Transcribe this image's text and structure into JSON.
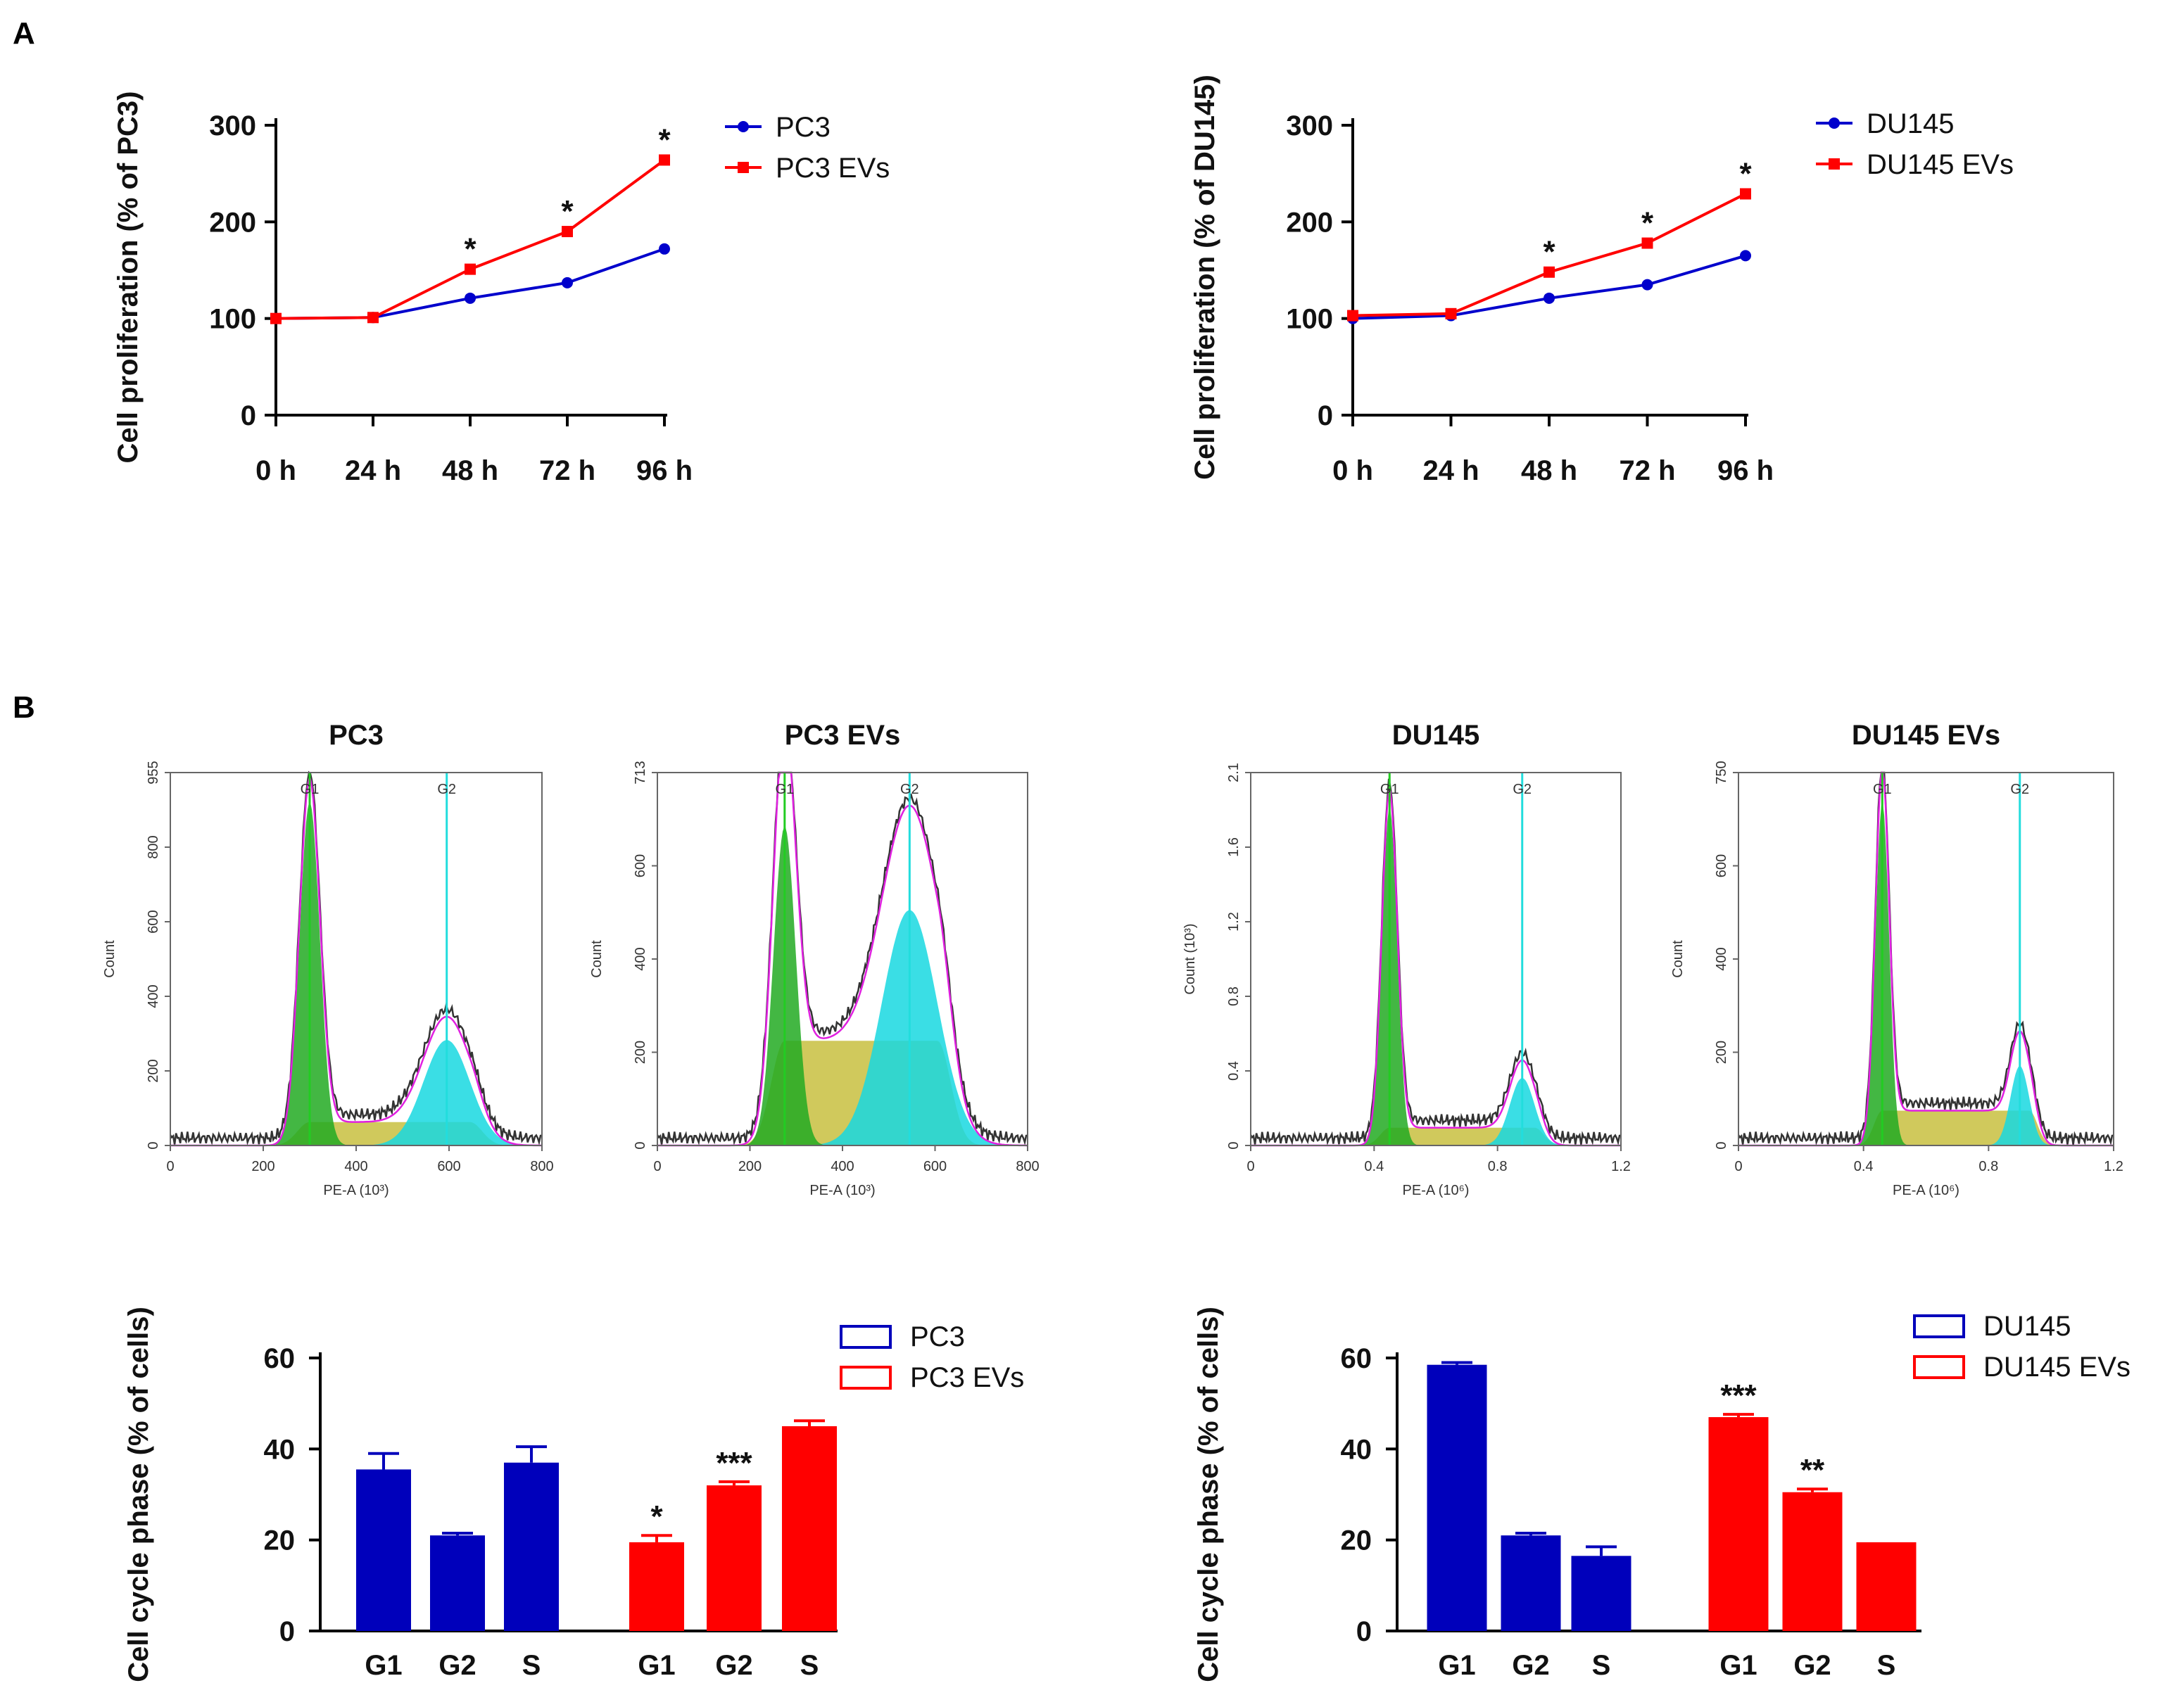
{
  "panels": {
    "a_label": "A",
    "b_label": "B"
  },
  "chart_data": [
    {
      "id": "prolif-pc3",
      "type": "line",
      "title": "",
      "ylabel": "Cell proliferation (% of PC3)",
      "categories": [
        "0 h",
        "24 h",
        "48 h",
        "72 h",
        "96 h"
      ],
      "yticks": [
        0,
        100,
        200,
        300
      ],
      "ylim": [
        0,
        300
      ],
      "legend": "top-right",
      "series": [
        {
          "name": "PC3",
          "color": "#0000cc",
          "marker": "circle",
          "values": [
            100,
            101,
            121,
            137,
            172
          ]
        },
        {
          "name": "PC3 EVs",
          "color": "#ff0000",
          "marker": "square",
          "values": [
            100,
            101,
            151,
            190,
            264
          ]
        }
      ],
      "significance": [
        "",
        "",
        "*",
        "*",
        "*"
      ]
    },
    {
      "id": "prolif-du145",
      "type": "line",
      "title": "",
      "ylabel": "Cell proliferation (% of DU145)",
      "categories": [
        "0 h",
        "24 h",
        "48 h",
        "72 h",
        "96 h"
      ],
      "yticks": [
        0,
        100,
        200,
        300
      ],
      "ylim": [
        0,
        300
      ],
      "legend": "top-right",
      "series": [
        {
          "name": "DU145",
          "color": "#0000cc",
          "marker": "circle",
          "values": [
            100,
            103,
            121,
            135,
            165
          ]
        },
        {
          "name": "DU145 EVs",
          "color": "#ff0000",
          "marker": "square",
          "values": [
            103,
            105,
            148,
            178,
            229
          ]
        }
      ],
      "significance": [
        "",
        "",
        "*",
        "*",
        "*"
      ]
    },
    {
      "id": "hist-pc3",
      "type": "area",
      "title": "PC3",
      "xlabel": "PE-A (10³)",
      "ylabel": "Count",
      "xticks": [
        "0",
        "200",
        "400",
        "600",
        "800"
      ],
      "xlim": [
        0,
        800
      ],
      "yticks": [
        "0",
        "200",
        "400",
        "600",
        "800",
        "955"
      ],
      "ylim": [
        0,
        955
      ],
      "gates": [
        {
          "label": "G1",
          "x": 300
        },
        {
          "label": "G2",
          "x": 595
        }
      ],
      "peaks": {
        "g1_height": 880,
        "g1_width": 22,
        "g2_height": 270,
        "g2_width": 50,
        "s_plateau": 60,
        "g2_center": 595
      }
    },
    {
      "id": "hist-pc3-evs",
      "type": "area",
      "title": "PC3 EVs",
      "xlabel": "PE-A (10³)",
      "ylabel": "Count",
      "xticks": [
        "0",
        "200",
        "400",
        "600",
        "800"
      ],
      "xlim": [
        0,
        800
      ],
      "yticks": [
        "0",
        "200",
        "400",
        "600",
        "713"
      ],
      "ylim": [
        0,
        713
      ],
      "gates": [
        {
          "label": "G1",
          "x": 275
        },
        {
          "label": "G2",
          "x": 545
        }
      ],
      "peaks": {
        "g1_height": 610,
        "g1_width": 24,
        "g2_height": 450,
        "g2_width": 60,
        "s_plateau": 200,
        "g2_center": 545
      }
    },
    {
      "id": "hist-du145",
      "type": "area",
      "title": "DU145",
      "xlabel": "PE-A (10⁶)",
      "ylabel": "Count (10³)",
      "xticks": [
        "0",
        "0.4",
        "0.8",
        "1.2"
      ],
      "xlim": [
        0,
        1.2
      ],
      "yticks": [
        "0",
        "0.4",
        "0.8",
        "1.2",
        "1.6",
        "2.1"
      ],
      "ylim": [
        0,
        2.1
      ],
      "gates": [
        {
          "label": "G1",
          "x": 0.45
        },
        {
          "label": "G2",
          "x": 0.88
        }
      ],
      "peaks": {
        "g1_height": 1.9,
        "g1_width": 0.025,
        "g2_height": 0.38,
        "g2_width": 0.04,
        "s_plateau": 0.1,
        "g2_center": 0.88
      }
    },
    {
      "id": "hist-du145-evs",
      "type": "area",
      "title": "DU145 EVs",
      "xlabel": "PE-A (10⁶)",
      "ylabel": "Count",
      "xticks": [
        "0",
        "0.4",
        "0.8",
        "1.2"
      ],
      "xlim": [
        0,
        1.2
      ],
      "yticks": [
        "0",
        "200",
        "400",
        "600",
        "750"
      ],
      "ylim": [
        0,
        750
      ],
      "gates": [
        {
          "label": "G1",
          "x": 0.46
        },
        {
          "label": "G2",
          "x": 0.9
        }
      ],
      "peaks": {
        "g1_height": 690,
        "g1_width": 0.022,
        "g2_height": 160,
        "g2_width": 0.03,
        "s_plateau": 70,
        "g2_center": 0.9
      }
    },
    {
      "id": "cycle-pc3",
      "type": "bar",
      "ylabel": "Cell cycle phase (% of cells)",
      "yticks": [
        0,
        20,
        40,
        60
      ],
      "ylim": [
        0,
        60
      ],
      "legend": "top-right",
      "groups": [
        {
          "name": "PC3",
          "color": "#0000bb",
          "categories": [
            "G1",
            "G2",
            "S"
          ],
          "values": [
            35.5,
            21,
            37
          ],
          "errors": [
            3.5,
            0.5,
            3.5
          ],
          "significance": [
            "",
            "",
            ""
          ]
        },
        {
          "name": "PC3 EVs",
          "color": "#ff0000",
          "categories": [
            "G1",
            "G2",
            "S"
          ],
          "values": [
            19.5,
            32,
            45
          ],
          "errors": [
            1.5,
            0.8,
            1.2
          ],
          "significance": [
            "*",
            "***",
            ""
          ]
        }
      ]
    },
    {
      "id": "cycle-du145",
      "type": "bar",
      "ylabel": "Cell cycle phase (% of cells)",
      "yticks": [
        0,
        20,
        40,
        60
      ],
      "ylim": [
        0,
        60
      ],
      "legend": "top-right",
      "groups": [
        {
          "name": "DU145",
          "color": "#0000bb",
          "categories": [
            "G1",
            "G2",
            "S"
          ],
          "values": [
            58.5,
            21,
            16.5
          ],
          "errors": [
            0.5,
            0.5,
            2
          ],
          "significance": [
            "",
            "",
            ""
          ]
        },
        {
          "name": "DU145 EVs",
          "color": "#ff0000",
          "categories": [
            "G1",
            "G2",
            "S"
          ],
          "values": [
            47,
            30.5,
            19.5
          ],
          "errors": [
            0.6,
            0.7,
            0
          ],
          "significance": [
            "***",
            "**",
            ""
          ]
        }
      ]
    }
  ]
}
